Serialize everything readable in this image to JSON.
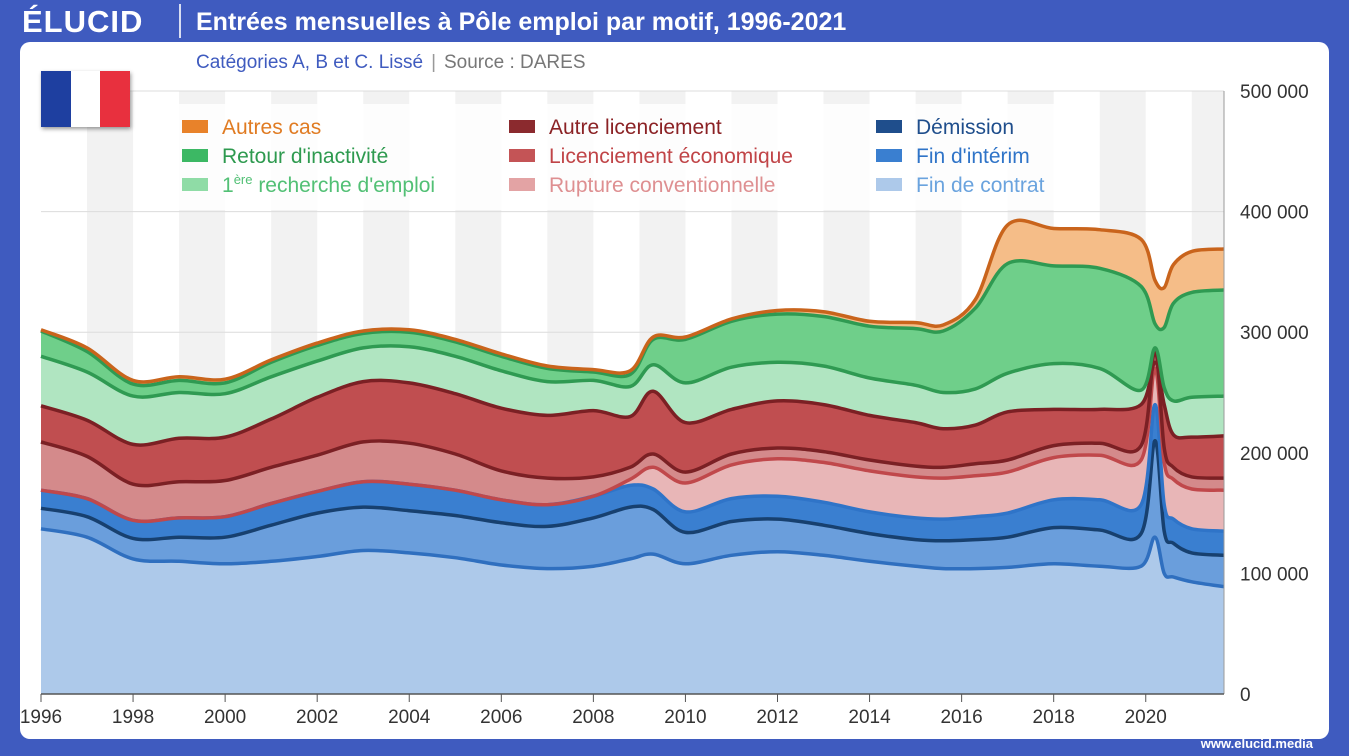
{
  "header": {
    "logo": "ÉLUCID",
    "title": "Entrées mensuelles à Pôle emploi par motif, 1996-2021",
    "subtitle_main": "Catégories A, B et C. Lissé",
    "subtitle_sep": "|",
    "subtitle_source": "Source : DARES"
  },
  "footer": {
    "url": "www.elucid.media"
  },
  "flag": {
    "colors": [
      "#1e3fa0",
      "#ffffff",
      "#e8303e"
    ]
  },
  "legend": {
    "items": [
      {
        "label_pre": "",
        "label_sup": "",
        "label": "Autres cas",
        "text_color": "#e07b22",
        "swatch": "#e8822a"
      },
      {
        "label_pre": "",
        "label_sup": "",
        "label": "Retour d'inactivité",
        "text_color": "#2e9a4f",
        "swatch": "#3cb864"
      },
      {
        "label_pre": "1",
        "label_sup": "ère",
        "label": " recherche d'emploi",
        "text_color": "#52c075",
        "swatch": "#8fdca6"
      },
      {
        "label_pre": "",
        "label_sup": "",
        "label": "Autre licenciement",
        "text_color": "#8b2225",
        "swatch": "#8b2a2e"
      },
      {
        "label_pre": "",
        "label_sup": "",
        "label": "Licenciement économique",
        "text_color": "#c04447",
        "swatch": "#c45456"
      },
      {
        "label_pre": "",
        "label_sup": "",
        "label": "Rupture conventionnelle",
        "text_color": "#de8f91",
        "swatch": "#e3a3a4"
      },
      {
        "label_pre": "",
        "label_sup": "",
        "label": "Démission",
        "text_color": "#1f4e8c",
        "swatch": "#1f4e8c"
      },
      {
        "label_pre": "",
        "label_sup": "",
        "label": "Fin d'intérim",
        "text_color": "#2f74c8",
        "swatch": "#3a7fd0"
      },
      {
        "label_pre": "",
        "label_sup": "",
        "label": "Fin de contrat",
        "text_color": "#6aa3de",
        "swatch": "#adc9ea"
      }
    ]
  },
  "chart_data": {
    "type": "area",
    "stacked": true,
    "title": "Entrées mensuelles à Pôle emploi par motif, 1996-2021",
    "subtitle": "Catégories A, B et C. Lissé",
    "xlim": [
      1996,
      2021.7
    ],
    "ylim": [
      0,
      500000
    ],
    "x_ticks": [
      1996,
      1998,
      2000,
      2002,
      2004,
      2006,
      2008,
      2010,
      2012,
      2014,
      2016,
      2018,
      2020
    ],
    "y_ticks": [
      0,
      100000,
      200000,
      300000,
      400000,
      500000
    ],
    "y_tick_labels": [
      "0",
      "100 000",
      "200 000",
      "300 000",
      "400 000",
      "500 000"
    ],
    "grid": "horizontal",
    "legend_position": "top",
    "x": [
      1996,
      1997,
      1998,
      1999,
      2000,
      2001,
      2002,
      2003,
      2004,
      2005,
      2006,
      2007,
      2008,
      2008.8,
      2009.3,
      2010,
      2011,
      2012,
      2013,
      2014,
      2015,
      2015.6,
      2016.3,
      2017,
      2018,
      2019,
      2019.9,
      2020.2,
      2020.4,
      2020.6,
      2021,
      2021.7
    ],
    "series": [
      {
        "name": "Fin de contrat",
        "color": "#adc9ea",
        "line": "#2f6fbf",
        "values": [
          137000,
          130000,
          112000,
          110000,
          108000,
          110000,
          114000,
          119000,
          117000,
          113000,
          107000,
          104000,
          106000,
          112000,
          116000,
          108000,
          115000,
          118000,
          115000,
          110000,
          106000,
          104000,
          104000,
          105000,
          108000,
          106000,
          106000,
          130000,
          100000,
          97000,
          93000,
          89000
        ]
      },
      {
        "name": "Fin d'intérim",
        "color": "#6a9edc",
        "line": "#17406f",
        "values": [
          17000,
          17000,
          17000,
          20000,
          22000,
          30000,
          36000,
          36000,
          35000,
          35000,
          35000,
          35000,
          40000,
          43000,
          37000,
          26000,
          28000,
          27000,
          25000,
          23000,
          22000,
          23000,
          24000,
          25000,
          30000,
          30000,
          27000,
          80000,
          35000,
          28000,
          24000,
          26000
        ]
      },
      {
        "name": "Démission",
        "color": "#3a7fd0",
        "line": "#2f74c8",
        "values": [
          15000,
          15000,
          15000,
          16000,
          17000,
          18000,
          18000,
          21000,
          22000,
          21000,
          19000,
          18000,
          18000,
          18000,
          17000,
          17000,
          19000,
          19000,
          19000,
          18000,
          18000,
          18000,
          19000,
          20000,
          23000,
          25000,
          24000,
          30000,
          22000,
          20000,
          20000,
          20000
        ]
      },
      {
        "name": "Rupture conventionnelle",
        "color": "#e8b6b7",
        "line": "#c0484b",
        "values": [
          0,
          0,
          0,
          0,
          0,
          0,
          0,
          0,
          0,
          0,
          0,
          0,
          0,
          5000,
          18000,
          24000,
          28000,
          31000,
          33000,
          34000,
          34000,
          34000,
          34000,
          34000,
          35000,
          37000,
          37000,
          30000,
          35000,
          33000,
          33000,
          34000
        ]
      },
      {
        "name": "Licenciement économique",
        "color": "#d48a8b",
        "line": "#7b2024",
        "values": [
          40000,
          35000,
          30000,
          30000,
          30000,
          30000,
          30000,
          33000,
          34000,
          30000,
          24000,
          22000,
          16000,
          10000,
          11000,
          9000,
          9000,
          9000,
          9000,
          9000,
          9000,
          9000,
          10000,
          10000,
          10000,
          10000,
          12000,
          15000,
          12000,
          10000,
          10000,
          10000
        ]
      },
      {
        "name": "Autre licenciement",
        "color": "#c04e50",
        "line": "#7b2024",
        "values": [
          30000,
          30000,
          33000,
          36000,
          36000,
          40000,
          48000,
          50000,
          50000,
          50000,
          52000,
          52000,
          55000,
          42000,
          52000,
          41000,
          37000,
          39000,
          39000,
          37000,
          36000,
          32000,
          32000,
          40000,
          30000,
          28000,
          34000,
          -10000,
          36000,
          27000,
          33000,
          35000
        ]
      },
      {
        "name": "1ère recherche d'emploi",
        "color": "#b0e5c1",
        "line": "#2f9a52",
        "values": [
          41000,
          40000,
          40000,
          38000,
          36000,
          35000,
          30000,
          28000,
          30000,
          31000,
          31000,
          28000,
          25000,
          25000,
          22000,
          33000,
          35000,
          32000,
          32000,
          31000,
          31000,
          30000,
          30000,
          32000,
          38000,
          34000,
          12000,
          12000,
          14000,
          28000,
          33000,
          33000
        ]
      },
      {
        "name": "Retour d'inactivité",
        "color": "#6fcf8a",
        "line": "#2f9a52",
        "values": [
          21000,
          17000,
          10000,
          10000,
          9000,
          12000,
          13000,
          12000,
          12000,
          12000,
          12000,
          11000,
          7000,
          10000,
          21000,
          36000,
          38000,
          40000,
          41000,
          43000,
          47000,
          51000,
          67000,
          91000,
          81000,
          83000,
          86000,
          20000,
          50000,
          81000,
          87000,
          88000
        ]
      },
      {
        "name": "Autres cas",
        "color": "#f5bd88",
        "line": "#c9641c",
        "values": [
          1000,
          3000,
          3000,
          3000,
          3000,
          2000,
          2000,
          2000,
          2000,
          2000,
          2000,
          2000,
          2000,
          3000,
          2000,
          2000,
          2000,
          3000,
          4000,
          4000,
          5000,
          5000,
          7000,
          32000,
          31000,
          32000,
          39000,
          36000,
          33000,
          32000,
          34000,
          34000
        ]
      }
    ]
  }
}
